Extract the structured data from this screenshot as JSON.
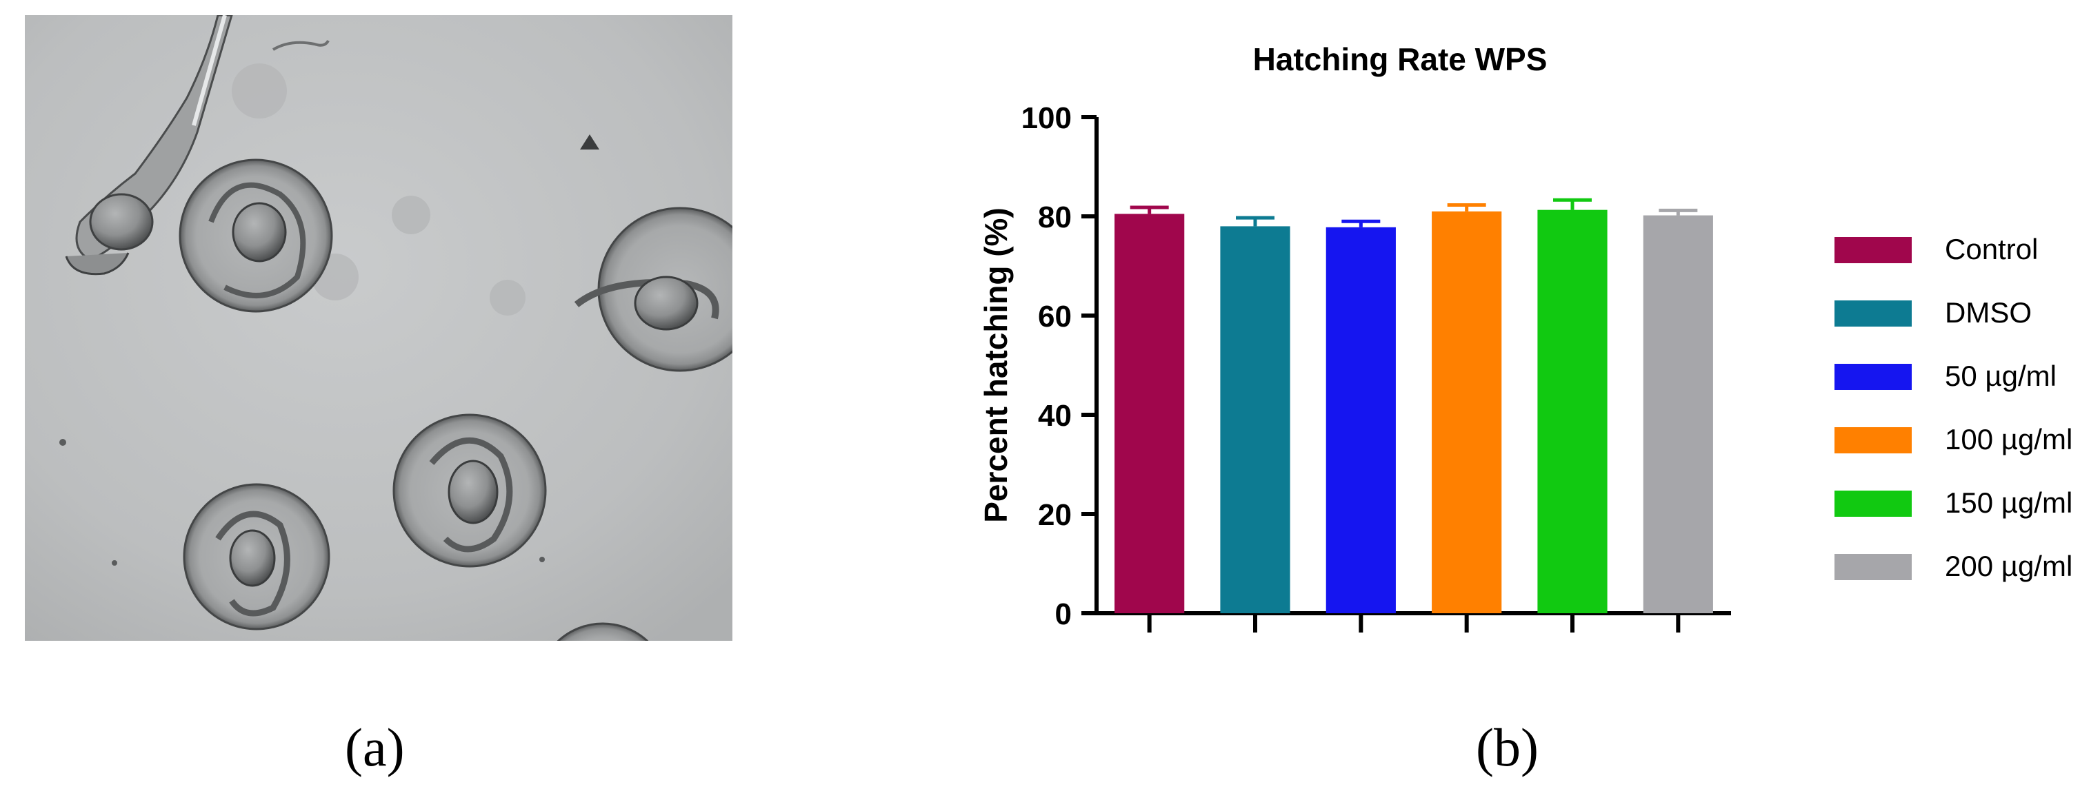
{
  "figure": {
    "panel_a_label": "(a)",
    "panel_b_label": "(b)"
  },
  "micrograph": {
    "subject": "zebrafish-embryos-micrograph"
  },
  "chart_data": {
    "type": "bar",
    "title": "Hatching Rate WPS",
    "xlabel": "",
    "ylabel": "Percent hatching  (%)",
    "ylim": [
      0,
      100
    ],
    "yticks": [
      0,
      20,
      40,
      60,
      80,
      100
    ],
    "categories": [
      "Control",
      "DMSO",
      "50 µg/ml",
      "100 µg/ml",
      "150 µg/ml",
      "200 µg/ml"
    ],
    "values": [
      80.5,
      78.0,
      77.8,
      81.0,
      81.3,
      80.2
    ],
    "errors": [
      1.3,
      1.7,
      1.2,
      1.3,
      2.0,
      1.0
    ],
    "colors": [
      "#A0064C",
      "#0D7B92",
      "#1515F0",
      "#FF8000",
      "#11C911",
      "#A6A6AA"
    ],
    "grid": false,
    "legend_position": "right"
  }
}
